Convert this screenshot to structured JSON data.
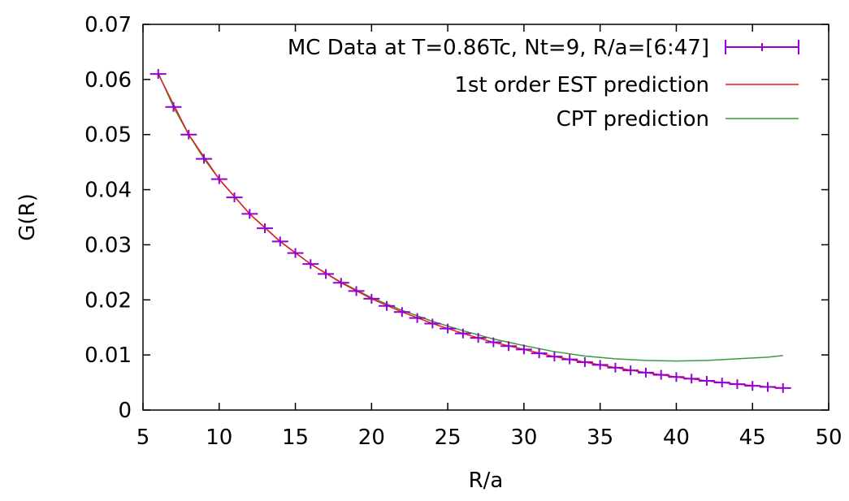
{
  "chart_data": {
    "type": "line",
    "title": "",
    "xlabel": "R/a",
    "ylabel": "G(R)",
    "xlim": [
      5,
      50
    ],
    "ylim": [
      0,
      0.07
    ],
    "x_ticks": [
      "5",
      "10",
      "15",
      "20",
      "25",
      "30",
      "35",
      "40",
      "45",
      "50"
    ],
    "y_ticks": [
      "0",
      "0.01",
      "0.02",
      "0.03",
      "0.04",
      "0.05",
      "0.06",
      "0.07"
    ],
    "grid": false,
    "legend_position": "top-right",
    "series": [
      {
        "name": "MC Data at T=0.86Tc, Nt=9, R/a=[6:47]",
        "kind": "errorbars",
        "color": "#9400d3",
        "x": [
          6,
          7,
          8,
          9,
          10,
          11,
          12,
          13,
          14,
          15,
          16,
          17,
          18,
          19,
          20,
          21,
          22,
          23,
          24,
          25,
          26,
          27,
          28,
          29,
          30,
          31,
          32,
          33,
          34,
          35,
          36,
          37,
          38,
          39,
          40,
          41,
          42,
          43,
          44,
          45,
          46,
          47
        ],
        "y": [
          0.061,
          0.055,
          0.05,
          0.0456,
          0.0419,
          0.0386,
          0.0356,
          0.033,
          0.0306,
          0.0285,
          0.0265,
          0.0247,
          0.0231,
          0.0216,
          0.0202,
          0.0189,
          0.0178,
          0.0167,
          0.0157,
          0.0148,
          0.0139,
          0.0131,
          0.0123,
          0.0116,
          0.011,
          0.0103,
          0.0097,
          0.0092,
          0.0087,
          0.0082,
          0.0077,
          0.0072,
          0.0068,
          0.0064,
          0.006,
          0.0057,
          0.0053,
          0.005,
          0.0047,
          0.0044,
          0.0042,
          0.004
        ]
      },
      {
        "name": "1st order EST prediction",
        "kind": "line",
        "color": "#e41a1c",
        "x": [
          6,
          8,
          10,
          12,
          14,
          16,
          18,
          20,
          22,
          24,
          26,
          28,
          30,
          32,
          34,
          36,
          38,
          40,
          42,
          44,
          46,
          47
        ],
        "y": [
          0.061,
          0.05,
          0.0419,
          0.0356,
          0.0306,
          0.0265,
          0.0231,
          0.0202,
          0.0178,
          0.0157,
          0.0139,
          0.0123,
          0.011,
          0.0097,
          0.0087,
          0.0077,
          0.0068,
          0.006,
          0.0053,
          0.0047,
          0.0042,
          0.004
        ]
      },
      {
        "name": "CPT prediction",
        "kind": "line",
        "color": "#3a9a3a",
        "x": [
          6,
          7,
          8,
          9,
          10,
          12,
          14,
          16,
          18,
          20,
          22,
          24,
          26,
          28,
          30,
          32,
          34,
          36,
          38,
          40,
          42,
          44,
          46,
          47
        ],
        "y": [
          0.0612,
          0.055,
          0.05,
          0.0456,
          0.0419,
          0.0356,
          0.0306,
          0.0265,
          0.0232,
          0.0204,
          0.0181,
          0.0161,
          0.0144,
          0.0129,
          0.0117,
          0.0106,
          0.0098,
          0.0093,
          0.009,
          0.0089,
          0.009,
          0.0093,
          0.0096,
          0.0099
        ]
      }
    ]
  }
}
